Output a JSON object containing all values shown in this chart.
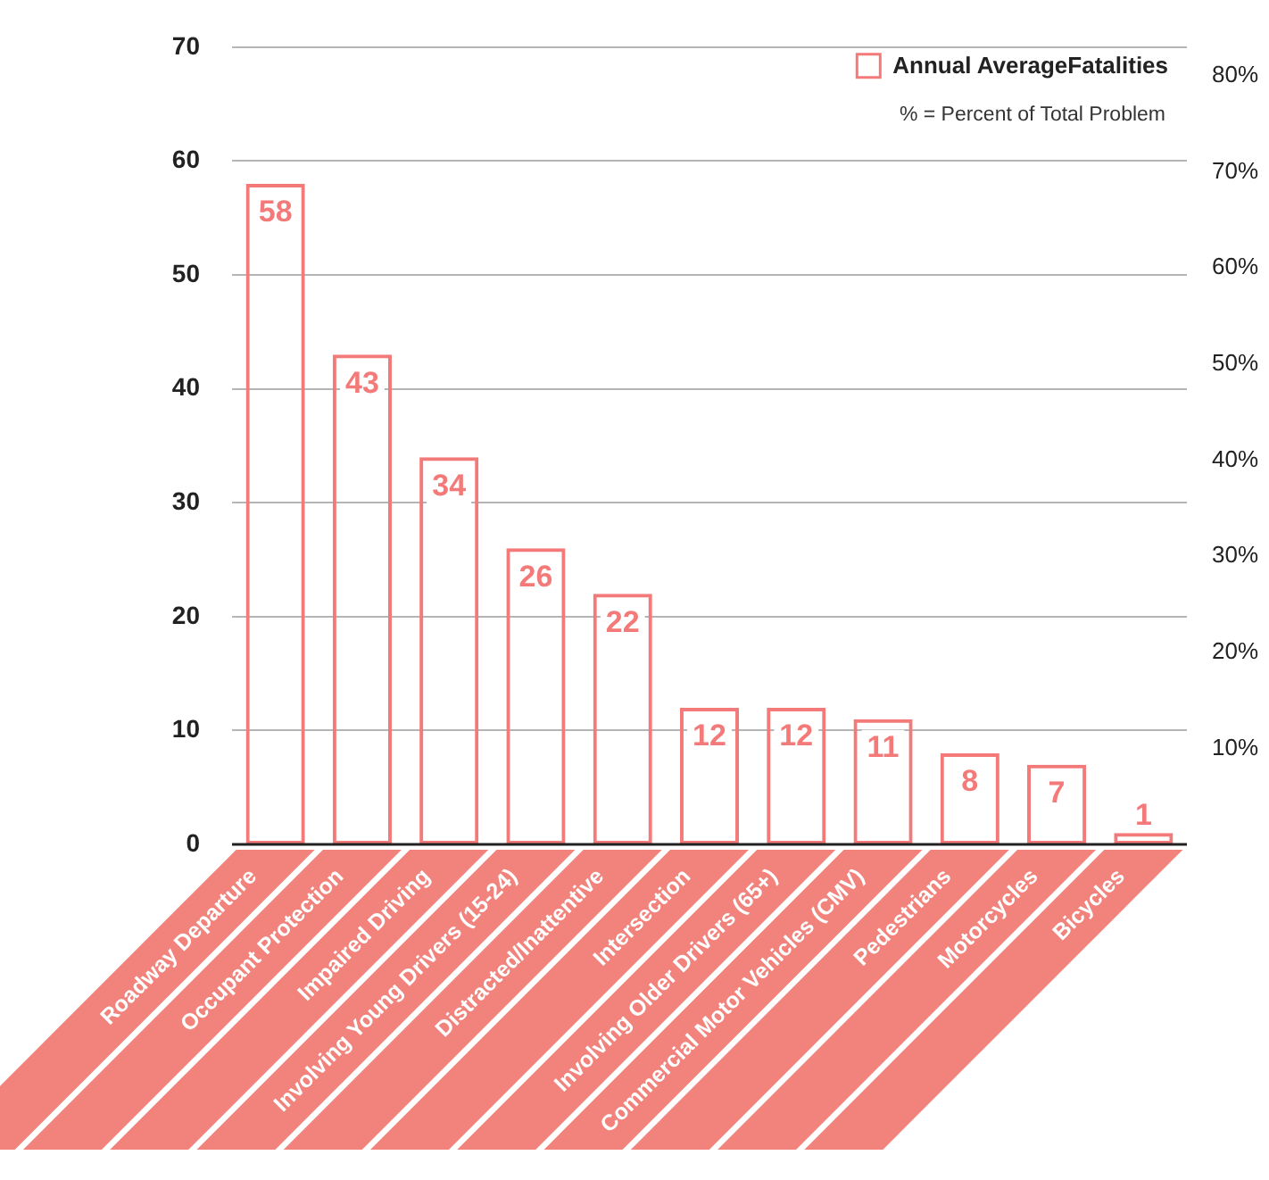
{
  "chart_data": {
    "type": "bar",
    "categories": [
      "Roadway Departure",
      "Occupant Protection",
      "Impaired Driving",
      "Involving Young Drivers (15-24)",
      "Distracted/Inattentive",
      "Intersection",
      "Involving Older Drivers (65+)",
      "Commercial Motor Vehicles (CMV)",
      "Pedestrians",
      "Motorcycles",
      "Bicycles"
    ],
    "series": [
      {
        "name": "Annual AverageFatalities",
        "color": "#f47a7a",
        "values": [
          58,
          43,
          34,
          26,
          22,
          12,
          12,
          11,
          8,
          7,
          1
        ]
      }
    ],
    "ylim": [
      0,
      70
    ],
    "yticks": [
      0,
      10,
      20,
      30,
      40,
      50,
      60,
      70
    ],
    "y2lim": [
      0,
      83
    ],
    "y2ticks": [
      {
        "value": 10,
        "label": "10%"
      },
      {
        "value": 20,
        "label": "20%"
      },
      {
        "value": 30,
        "label": "30%"
      },
      {
        "value": 40,
        "label": "40%"
      },
      {
        "value": 50,
        "label": "50%"
      },
      {
        "value": 60,
        "label": "60%"
      },
      {
        "value": 70,
        "label": "70%"
      },
      {
        "value": 80,
        "label": "80%"
      }
    ],
    "annotations": [
      "% = Percent of Total Problem"
    ],
    "grid": "y",
    "legend": "top right",
    "data_labels": true
  }
}
